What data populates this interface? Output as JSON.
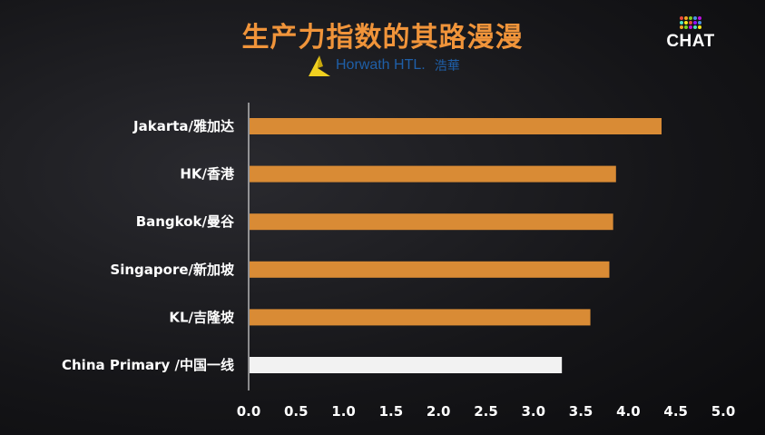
{
  "header": {
    "title": "生产力指数的其路漫漫",
    "brand_name": "Horwath HTL.",
    "brand_cn": "浩華",
    "logo_text": "CHAT"
  },
  "colors": {
    "accent": "#f0943a",
    "bar_default": "#d98b35",
    "bar_highlight": "#f2f2f2",
    "background": "#151518"
  },
  "chart_data": {
    "type": "bar",
    "orientation": "horizontal",
    "categories": [
      "Jakarta/雅加达",
      "HK/香港",
      "Bangkok/曼谷",
      "Singapore/新加坡",
      "KL/吉隆坡",
      "China Primary /中国一线"
    ],
    "values": [
      4.35,
      3.87,
      3.84,
      3.8,
      3.6,
      3.3
    ],
    "highlight_category": "China Primary /中国一线",
    "xlim": [
      0,
      5
    ],
    "xticks": [
      "0.0",
      "0.5",
      "1.0",
      "1.5",
      "2.0",
      "2.5",
      "3.0",
      "3.5",
      "4.0",
      "4.5",
      "5.0"
    ],
    "grid": false,
    "legend": "none"
  }
}
